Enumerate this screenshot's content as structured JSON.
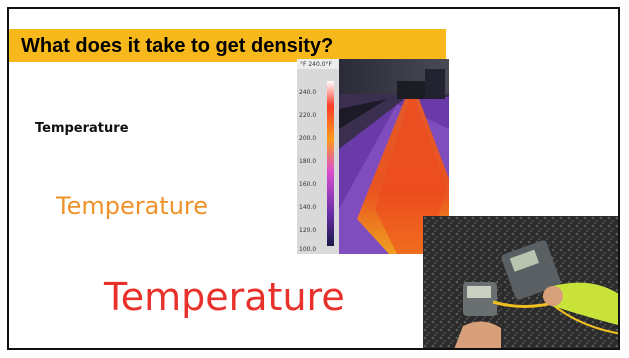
{
  "slide": {
    "title": "What does it take to get density?",
    "lines": [
      {
        "text": "Temperature",
        "color": "#111111"
      },
      {
        "text": "Temperature",
        "color": "#f0922b"
      },
      {
        "text": "Temperature",
        "color": "#e8312a"
      }
    ],
    "title_bar_color": "#f7b81b"
  },
  "thermal_image": {
    "header": "°F 240.0°F",
    "scale_labels": [
      "240.0",
      "220.0",
      "200.0",
      "180.0",
      "160.0",
      "140.0",
      "120.0",
      "100.0"
    ]
  },
  "photo": {
    "subject": "handheld thermometers held over asphalt"
  }
}
